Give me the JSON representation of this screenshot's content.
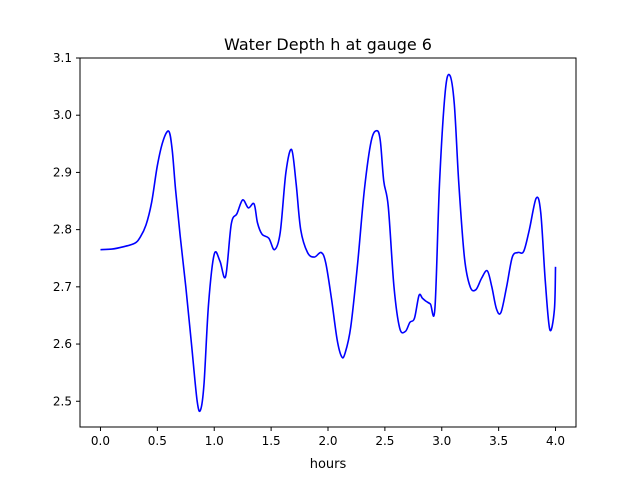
{
  "chart_data": {
    "type": "line",
    "title": "Water Depth h at gauge 6",
    "xlabel": "hours",
    "ylabel": "",
    "xlim": [
      -0.18,
      4.18
    ],
    "ylim": [
      2.455,
      3.1
    ],
    "xticks": [
      0.0,
      0.5,
      1.0,
      1.5,
      2.0,
      2.5,
      3.0,
      3.5,
      4.0
    ],
    "xtick_labels": [
      "0.0",
      "0.5",
      "1.0",
      "1.5",
      "2.0",
      "2.5",
      "3.0",
      "3.5",
      "4.0"
    ],
    "yticks": [
      2.5,
      2.6,
      2.7,
      2.8,
      2.9,
      3.0,
      3.1
    ],
    "ytick_labels": [
      "2.5",
      "2.6",
      "2.7",
      "2.8",
      "2.9",
      "3.0",
      "3.1"
    ],
    "grid": false,
    "series": [
      {
        "color": "#0000ff",
        "x": [
          0.0,
          0.1,
          0.2,
          0.3,
          0.35,
          0.4,
          0.45,
          0.5,
          0.55,
          0.6,
          0.63,
          0.66,
          0.7,
          0.75,
          0.8,
          0.85,
          0.88,
          0.91,
          0.95,
          1.0,
          1.05,
          1.1,
          1.15,
          1.2,
          1.25,
          1.3,
          1.35,
          1.38,
          1.42,
          1.48,
          1.53,
          1.58,
          1.63,
          1.68,
          1.72,
          1.76,
          1.82,
          1.88,
          1.94,
          1.98,
          2.03,
          2.08,
          2.12,
          2.15,
          2.2,
          2.26,
          2.32,
          2.38,
          2.43,
          2.46,
          2.49,
          2.53,
          2.58,
          2.63,
          2.68,
          2.72,
          2.76,
          2.8,
          2.83,
          2.86,
          2.9,
          2.94,
          2.98,
          3.03,
          3.07,
          3.11,
          3.15,
          3.2,
          3.25,
          3.3,
          3.35,
          3.4,
          3.44,
          3.48,
          3.52,
          3.57,
          3.62,
          3.67,
          3.72,
          3.77,
          3.83,
          3.87,
          3.91,
          3.95,
          3.99,
          4.0
        ],
        "y": [
          2.765,
          2.766,
          2.77,
          2.776,
          2.787,
          2.808,
          2.848,
          2.912,
          2.955,
          2.972,
          2.94,
          2.87,
          2.79,
          2.7,
          2.6,
          2.5,
          2.485,
          2.53,
          2.67,
          2.757,
          2.745,
          2.718,
          2.81,
          2.828,
          2.852,
          2.838,
          2.845,
          2.812,
          2.792,
          2.785,
          2.765,
          2.795,
          2.9,
          2.94,
          2.88,
          2.8,
          2.76,
          2.752,
          2.76,
          2.742,
          2.68,
          2.608,
          2.578,
          2.584,
          2.63,
          2.74,
          2.87,
          2.955,
          2.973,
          2.955,
          2.885,
          2.84,
          2.7,
          2.628,
          2.622,
          2.638,
          2.645,
          2.685,
          2.68,
          2.675,
          2.67,
          2.663,
          2.88,
          3.04,
          3.07,
          3.02,
          2.88,
          2.75,
          2.7,
          2.695,
          2.715,
          2.728,
          2.7,
          2.662,
          2.655,
          2.7,
          2.752,
          2.76,
          2.762,
          2.8,
          2.855,
          2.83,
          2.71,
          2.625,
          2.66,
          2.735
        ]
      }
    ]
  }
}
